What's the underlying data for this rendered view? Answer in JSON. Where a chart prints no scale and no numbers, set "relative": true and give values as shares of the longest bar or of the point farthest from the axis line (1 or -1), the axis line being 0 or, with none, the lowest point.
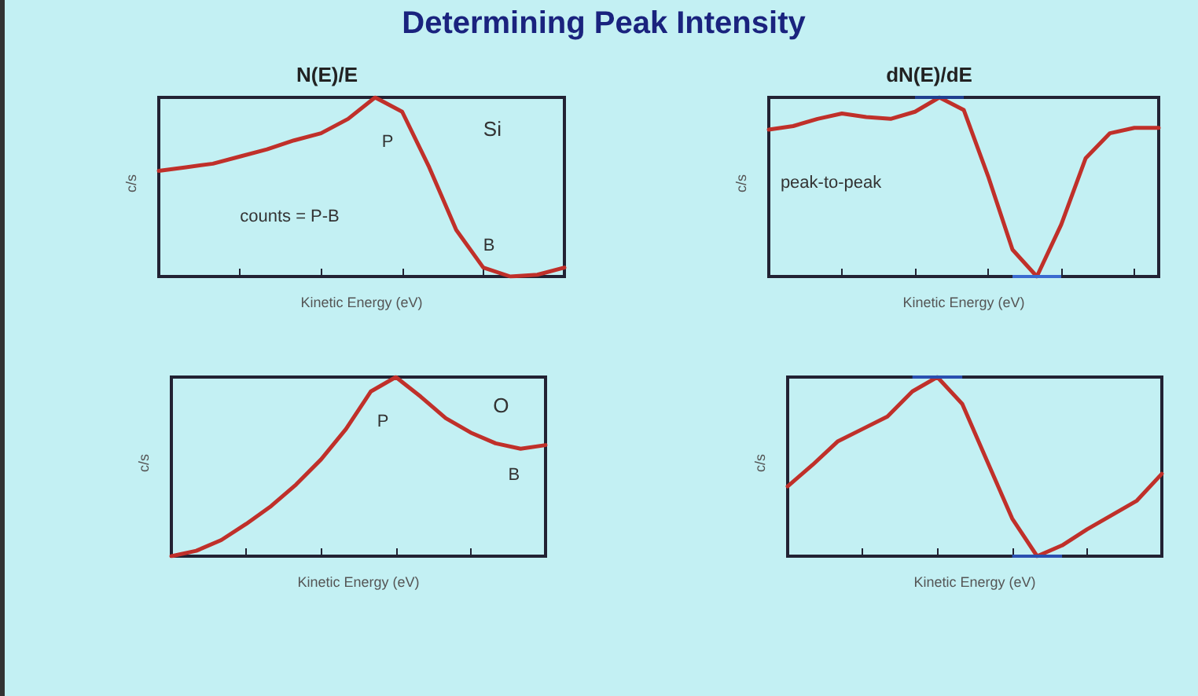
{
  "chart_data": [
    {
      "type": "other",
      "title": "Determining Peak Intensity"
    },
    {
      "type": "line",
      "title": "N(E)/E",
      "xlabel": "Kinetic Energy (eV)",
      "ylabel": "c/s",
      "relative": true,
      "tick_labels": false,
      "grid": false,
      "marker": "none",
      "line_style": "solid",
      "categories": [
        null,
        null,
        null,
        null,
        null,
        null,
        null,
        null,
        null,
        null,
        null,
        null,
        null,
        null,
        null,
        null
      ],
      "series": [
        {
          "color": "#c0302a",
          "values": [
            0.59,
            0.61,
            0.63,
            0.67,
            0.71,
            0.76,
            0.8,
            0.88,
            1,
            0.92,
            0.61,
            0.26,
            0.05,
            0,
            0.01,
            0.05
          ]
        }
      ],
      "annotations": [
        "Si",
        "P",
        "B",
        "counts = P-B"
      ]
    },
    {
      "type": "line",
      "title": "dN(E)/dE",
      "xlabel": "Kinetic Energy (eV)",
      "ylabel": "c/s",
      "relative": true,
      "tick_labels": false,
      "grid": false,
      "marker": "none",
      "line_style": "solid",
      "categories": [
        null,
        null,
        null,
        null,
        null,
        null,
        null,
        null,
        null,
        null,
        null,
        null,
        null,
        null,
        null,
        null,
        null
      ],
      "series": [
        {
          "color": "#c0302a",
          "values": [
            0.82,
            0.84,
            0.88,
            0.91,
            0.89,
            0.88,
            0.92,
            1,
            0.93,
            0.56,
            0.15,
            0,
            0.29,
            0.66,
            0.8,
            0.83,
            0.83
          ]
        }
      ],
      "ref_lines": [
        {
          "axis": "y",
          "value": 1,
          "color": "#1f3f8f"
        },
        {
          "axis": "y",
          "value": 0,
          "color": "#3a6ad0"
        }
      ],
      "annotations": [
        "peak-to-peak"
      ]
    },
    {
      "type": "line",
      "xlabel": "Kinetic Energy (eV)",
      "ylabel": "c/s",
      "relative": true,
      "tick_labels": false,
      "grid": false,
      "marker": "none",
      "line_style": "solid",
      "categories": [
        null,
        null,
        null,
        null,
        null,
        null,
        null,
        null,
        null,
        null,
        null,
        null,
        null,
        null,
        null,
        null
      ],
      "series": [
        {
          "color": "#c0302a",
          "values": [
            0,
            0.03,
            0.09,
            0.18,
            0.28,
            0.4,
            0.54,
            0.71,
            0.92,
            1,
            0.89,
            0.77,
            0.69,
            0.63,
            0.6,
            0.62
          ]
        }
      ],
      "annotations": [
        "O",
        "P",
        "B"
      ]
    },
    {
      "type": "line",
      "xlabel": "Kinetic Energy (eV)",
      "ylabel": "c/s",
      "relative": true,
      "tick_labels": false,
      "grid": false,
      "marker": "none",
      "line_style": "solid",
      "categories": [
        null,
        null,
        null,
        null,
        null,
        null,
        null,
        null,
        null,
        null,
        null,
        null,
        null,
        null,
        null,
        null
      ],
      "series": [
        {
          "color": "#c0302a",
          "values": [
            0.39,
            0.51,
            0.64,
            0.71,
            0.78,
            0.92,
            1,
            0.85,
            0.53,
            0.21,
            0,
            0.06,
            0.15,
            0.23,
            0.31,
            0.46
          ]
        }
      ],
      "ref_lines": [
        {
          "axis": "y",
          "value": 1,
          "color": "#2a4fb0"
        },
        {
          "axis": "y",
          "value": 0,
          "color": "#2a4fb0"
        }
      ]
    }
  ]
}
